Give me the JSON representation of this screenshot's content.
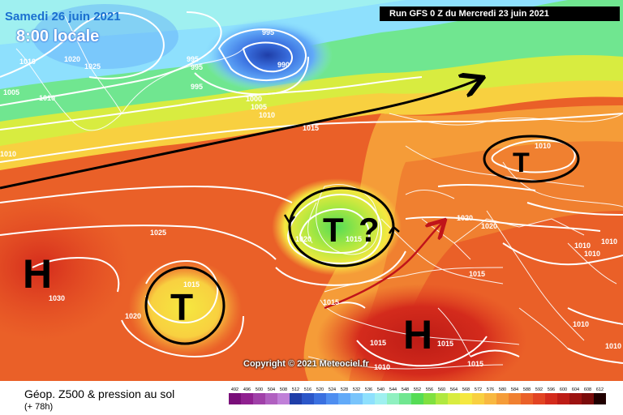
{
  "header": {
    "date": "Samedi 26 juin 2021",
    "time": "8:00 locale",
    "run": "Run GFS 0 Z du Mercredi 23 juin 2021"
  },
  "copyright": "Copyright © 2021 Meteociel.fr",
  "footer": {
    "title": "Géop. Z500 & pression au sol",
    "subtitle": "(+ 78h)"
  },
  "legend": {
    "labels": [
      "492",
      "496",
      "500",
      "504",
      "508",
      "512",
      "516",
      "520",
      "524",
      "528",
      "532",
      "536",
      "540",
      "544",
      "548",
      "552",
      "556",
      "560",
      "564",
      "568",
      "572",
      "576",
      "580",
      "584",
      "588",
      "592",
      "596",
      "600",
      "604",
      "608",
      "612"
    ],
    "colors": [
      "#7a0f7a",
      "#902090",
      "#a040a8",
      "#b060c0",
      "#c080d8",
      "#1f3ea8",
      "#2b56c8",
      "#3a70e0",
      "#4e8ef0",
      "#62aaf8",
      "#78c4fb",
      "#8ee0fd",
      "#9ff0f0",
      "#8ff0c0",
      "#70e690",
      "#55dc55",
      "#80e040",
      "#b0e840",
      "#d8ec40",
      "#f5e840",
      "#f8d040",
      "#f8b840",
      "#f59c38",
      "#f08030",
      "#ea6028",
      "#e24422",
      "#d42b1c",
      "#bd1c16",
      "#9c1210",
      "#7a0b0a",
      "#200000"
    ]
  },
  "symbols": {
    "high": "H",
    "low": "T",
    "question": "?"
  },
  "isobars": {
    "l1": "1010",
    "l2": "1020",
    "l3": "1025",
    "l4": "995",
    "l5": "990",
    "l6": "995",
    "l7": "995",
    "l8": "995",
    "l9": "1005",
    "l10": "1010",
    "l11": "1000",
    "l12": "1005",
    "l13": "1010",
    "l14": "1015",
    "l15": "1010",
    "l16": "1025",
    "l17": "1030",
    "l18": "1015",
    "l19": "1020",
    "l20": "1020",
    "l21": "1015",
    "l22": "1020",
    "l23": "1020",
    "l24": "1010",
    "l25": "1010",
    "l26": "1010",
    "l27": "1015",
    "l28": "1010",
    "l29": "1015",
    "l30": "1015",
    "l31": "1010",
    "l32": "1015",
    "l33": "1010",
    "l34": "1010",
    "l35": "1015"
  }
}
